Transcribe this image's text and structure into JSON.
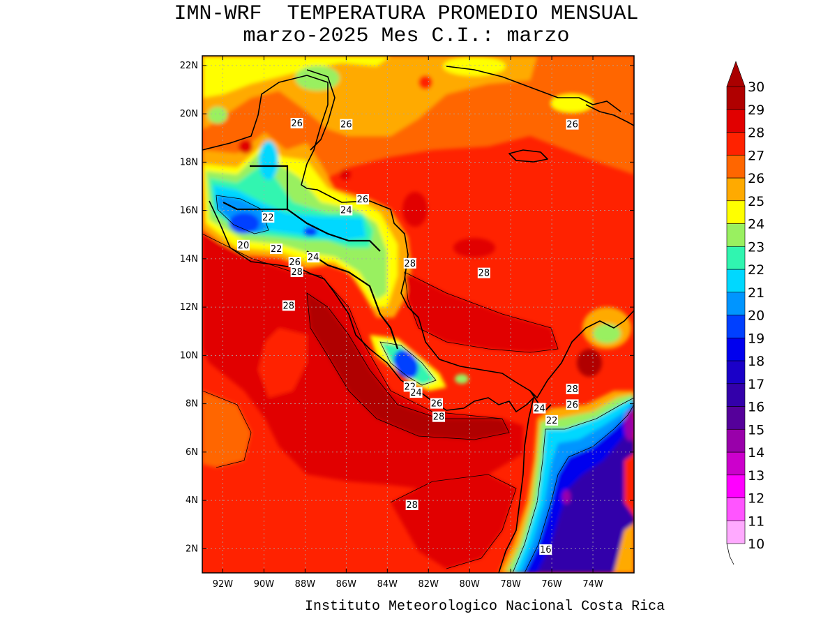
{
  "header": {
    "title_line1": "IMN-WRF  TEMPERATURA PROMEDIO MENSUAL",
    "title_line2": "marzo-2025 Mes C.I.: marzo"
  },
  "footer": {
    "credit": "Instituto Meteorologico Nacional Costa Rica"
  },
  "map": {
    "lon_range": [
      -93.0,
      -72.0
    ],
    "lat_range": [
      1.0,
      22.4
    ],
    "lon_ticks": [
      {
        "value": -92,
        "label": "92W"
      },
      {
        "value": -90,
        "label": "90W"
      },
      {
        "value": -88,
        "label": "88W"
      },
      {
        "value": -86,
        "label": "86W"
      },
      {
        "value": -84,
        "label": "84W"
      },
      {
        "value": -82,
        "label": "82W"
      },
      {
        "value": -80,
        "label": "80W"
      },
      {
        "value": -78,
        "label": "78W"
      },
      {
        "value": -76,
        "label": "76W"
      },
      {
        "value": -74,
        "label": "74W"
      }
    ],
    "lat_ticks": [
      {
        "value": 22,
        "label": "22N"
      },
      {
        "value": 20,
        "label": "20N"
      },
      {
        "value": 18,
        "label": "18N"
      },
      {
        "value": 16,
        "label": "16N"
      },
      {
        "value": 14,
        "label": "14N"
      },
      {
        "value": 12,
        "label": "12N"
      },
      {
        "value": 10,
        "label": "10N"
      },
      {
        "value": 8,
        "label": "8N"
      },
      {
        "value": 6,
        "label": "6N"
      },
      {
        "value": 4,
        "label": "4N"
      },
      {
        "value": 2,
        "label": "2N"
      }
    ],
    "grid": true,
    "contour_labels": [
      {
        "lon": -88.4,
        "lat": 19.6,
        "text": "26"
      },
      {
        "lon": -86.0,
        "lat": 19.55,
        "text": "26"
      },
      {
        "lon": -75.0,
        "lat": 19.55,
        "text": "26"
      },
      {
        "lon": -85.2,
        "lat": 16.45,
        "text": "26"
      },
      {
        "lon": -86.0,
        "lat": 16.0,
        "text": "24"
      },
      {
        "lon": -89.8,
        "lat": 15.7,
        "text": "22"
      },
      {
        "lon": -91.0,
        "lat": 14.55,
        "text": "20"
      },
      {
        "lon": -89.4,
        "lat": 14.4,
        "text": "22"
      },
      {
        "lon": -87.6,
        "lat": 14.05,
        "text": "24"
      },
      {
        "lon": -88.5,
        "lat": 13.85,
        "text": "26"
      },
      {
        "lon": -88.4,
        "lat": 13.45,
        "text": "28"
      },
      {
        "lon": -82.9,
        "lat": 13.8,
        "text": "28"
      },
      {
        "lon": -79.3,
        "lat": 13.4,
        "text": "28"
      },
      {
        "lon": -88.8,
        "lat": 12.05,
        "text": "28"
      },
      {
        "lon": -82.9,
        "lat": 8.7,
        "text": "22"
      },
      {
        "lon": -82.6,
        "lat": 8.45,
        "text": "24"
      },
      {
        "lon": -81.6,
        "lat": 8.0,
        "text": "26"
      },
      {
        "lon": -81.5,
        "lat": 7.45,
        "text": "28"
      },
      {
        "lon": -75.0,
        "lat": 8.6,
        "text": "28"
      },
      {
        "lon": -75.0,
        "lat": 7.95,
        "text": "26"
      },
      {
        "lon": -76.6,
        "lat": 7.8,
        "text": "24"
      },
      {
        "lon": -76.0,
        "lat": 7.3,
        "text": "22"
      },
      {
        "lon": -82.8,
        "lat": 3.8,
        "text": "28"
      },
      {
        "lon": -76.3,
        "lat": 1.95,
        "text": "16"
      }
    ]
  },
  "colorbar": {
    "levels": [
      "10",
      "11",
      "12",
      "13",
      "14",
      "15",
      "16",
      "17",
      "18",
      "19",
      "20",
      "21",
      "22",
      "23",
      "24",
      "25",
      "26",
      "27",
      "28",
      "29",
      "30"
    ],
    "colors": [
      "#ffaaff",
      "#ff55ff",
      "#ff00ff",
      "#cc00cc",
      "#9900aa",
      "#55009a",
      "#3300aa",
      "#1a00c8",
      "#0000ee",
      "#0040ff",
      "#0095ff",
      "#00d8ff",
      "#30f5b0",
      "#99f060",
      "#ffff00",
      "#ffaa00",
      "#ff6600",
      "#ff2200",
      "#e10000",
      "#b00000",
      "#aa0000"
    ]
  }
}
